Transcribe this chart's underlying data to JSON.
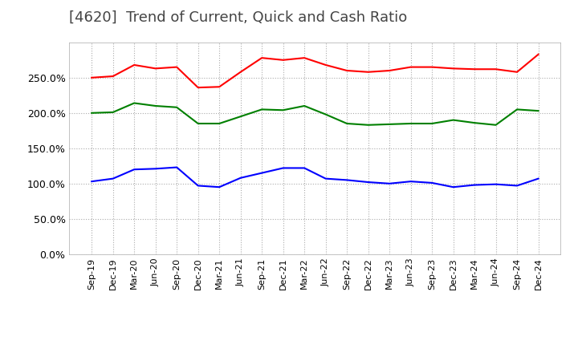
{
  "title": "[4620]  Trend of Current, Quick and Cash Ratio",
  "x_labels": [
    "Sep-19",
    "Dec-19",
    "Mar-20",
    "Jun-20",
    "Sep-20",
    "Dec-20",
    "Mar-21",
    "Jun-21",
    "Sep-21",
    "Dec-21",
    "Mar-22",
    "Jun-22",
    "Sep-22",
    "Dec-22",
    "Mar-23",
    "Jun-23",
    "Sep-23",
    "Dec-23",
    "Mar-24",
    "Jun-24",
    "Sep-24",
    "Dec-24"
  ],
  "current_ratio": [
    250.0,
    252.0,
    268.0,
    263.0,
    265.0,
    236.0,
    237.0,
    258.0,
    278.0,
    275.0,
    278.0,
    268.0,
    260.0,
    258.0,
    260.0,
    265.0,
    265.0,
    263.0,
    262.0,
    262.0,
    258.0,
    283.0
  ],
  "quick_ratio": [
    200.0,
    201.0,
    214.0,
    210.0,
    208.0,
    185.0,
    185.0,
    195.0,
    205.0,
    204.0,
    210.0,
    198.0,
    185.0,
    183.0,
    184.0,
    185.0,
    185.0,
    190.0,
    186.0,
    183.0,
    205.0,
    203.0
  ],
  "cash_ratio": [
    103.0,
    107.0,
    120.0,
    121.0,
    123.0,
    97.0,
    95.0,
    108.0,
    115.0,
    122.0,
    122.0,
    107.0,
    105.0,
    102.0,
    100.0,
    103.0,
    101.0,
    95.0,
    98.0,
    99.0,
    97.0,
    107.0
  ],
  "current_color": "#FF0000",
  "quick_color": "#008000",
  "cash_color": "#0000FF",
  "ylim": [
    0,
    300
  ],
  "yticks": [
    0,
    50,
    100,
    150,
    200,
    250
  ],
  "background_color": "#FFFFFF",
  "grid_color": "#AAAAAA",
  "title_fontsize": 13,
  "title_color": "#444444"
}
